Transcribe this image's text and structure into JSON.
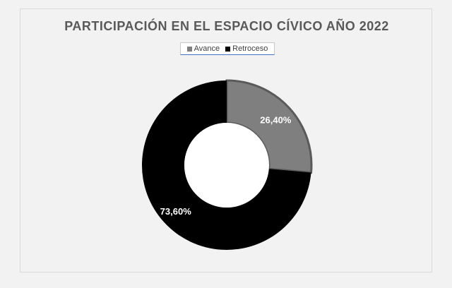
{
  "chart_data": {
    "type": "pie",
    "variant": "donut",
    "title": "PARTICIPACIÓN EN EL ESPACIO CÍVICO AÑO 2022",
    "categories": [
      "Avance",
      "Retroceso"
    ],
    "values": [
      26.4,
      73.6
    ],
    "labels": [
      "26,40%",
      "73,60%"
    ],
    "colors": [
      "#7f7f7f",
      "#000000"
    ],
    "legend_position": "top"
  }
}
